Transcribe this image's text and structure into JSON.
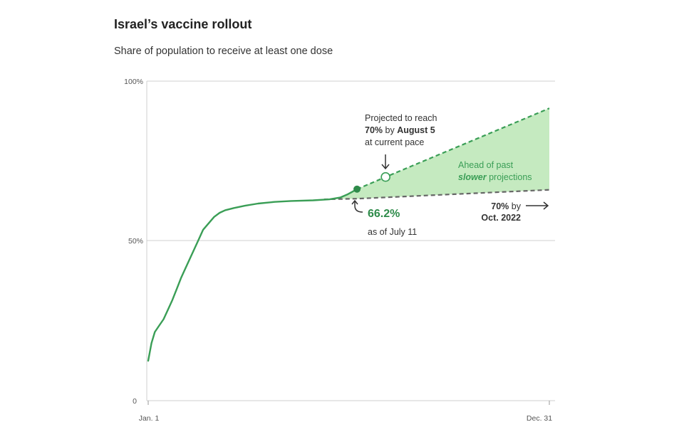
{
  "chart_data": {
    "type": "line",
    "title": "Israel’s vaccine rollout",
    "subtitle": "Share of population to receive at least one dose",
    "x_axis": {
      "tick_labels": [
        "Jan. 1",
        "Dec. 31"
      ],
      "range_days": [
        0,
        365
      ]
    },
    "y_axis": {
      "tick_labels": [
        "0",
        "50%",
        "100%"
      ],
      "ticks": [
        0,
        50,
        100
      ],
      "ylim": [
        0,
        100
      ]
    },
    "series": [
      {
        "name": "Actual share (at least one dose)",
        "color": "#3a9e56",
        "points": [
          [
            0,
            12.5
          ],
          [
            3,
            18
          ],
          [
            6,
            21.5
          ],
          [
            10,
            23.5
          ],
          [
            14,
            25.5
          ],
          [
            18,
            28.5
          ],
          [
            22,
            31.5
          ],
          [
            26,
            35
          ],
          [
            30,
            38.5
          ],
          [
            34,
            41.5
          ],
          [
            38,
            44.5
          ],
          [
            42,
            47.5
          ],
          [
            46,
            50.5
          ],
          [
            50,
            53.5
          ],
          [
            55,
            55.5
          ],
          [
            60,
            57.5
          ],
          [
            65,
            58.8
          ],
          [
            70,
            59.6
          ],
          [
            78,
            60.3
          ],
          [
            88,
            61
          ],
          [
            100,
            61.7
          ],
          [
            115,
            62.2
          ],
          [
            130,
            62.5
          ],
          [
            150,
            62.7
          ],
          [
            165,
            63
          ],
          [
            175,
            63.6
          ],
          [
            181,
            64.5
          ],
          [
            190,
            66.2
          ]
        ]
      },
      {
        "name": "Projection at current pace",
        "color": "#3a9e56",
        "style": "dashed",
        "points": [
          [
            190,
            66.2
          ],
          [
            216,
            70
          ],
          [
            365,
            91.5
          ]
        ]
      },
      {
        "name": "Past slower projection",
        "color": "#666666",
        "style": "dashed",
        "points": [
          [
            160,
            63
          ],
          [
            190,
            63.2
          ],
          [
            365,
            66
          ]
        ]
      }
    ],
    "markers": [
      {
        "label": "current",
        "x": 190,
        "y": 66.2,
        "style": "filled"
      },
      {
        "label": "projected 70%",
        "x": 216,
        "y": 70,
        "style": "hollow"
      }
    ],
    "shaded_region": {
      "label": "Ahead of past slower projections",
      "color": "#c5eac0"
    },
    "annotations": {
      "projection_line1": "Projected to reach",
      "projection_line2_bold1": "70%",
      "projection_line2_mid": " by ",
      "projection_line2_bold2": "August 5",
      "projection_line3": "at current pace",
      "ahead_line1": "Ahead of past",
      "ahead_line2_bold": "slower",
      "ahead_line2_rest": " projections",
      "current_value": "66.2%",
      "current_date": "as of July 11",
      "slow_line1_bold": "70%",
      "slow_line1_rest": " by",
      "slow_line2_bold": "Oct. 2022"
    }
  }
}
